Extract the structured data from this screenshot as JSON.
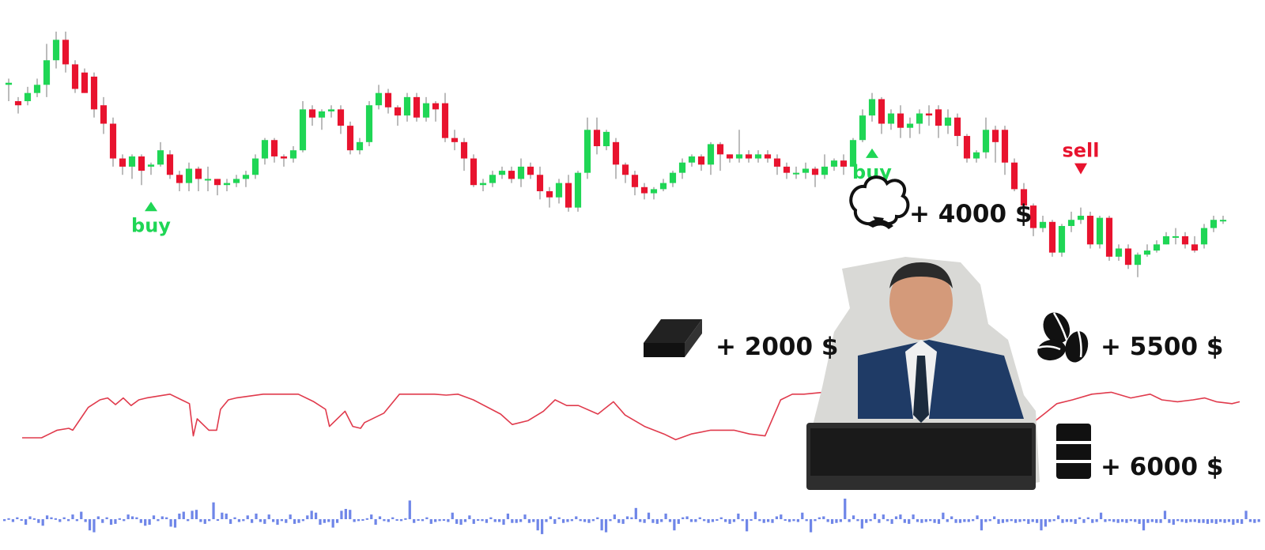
{
  "chart_data": {
    "type": "candlestick",
    "colors": {
      "up": "#1fd655",
      "down": "#e8132e",
      "line": "#e03a4c",
      "volume": "#6f86e8",
      "buy": "#1fd655",
      "sell": "#e8132e",
      "text": "#111111"
    },
    "grid": false,
    "legend": "none",
    "price_range": [
      0,
      100
    ],
    "oscillator_range": [
      0,
      100
    ],
    "volume_range": [
      -30,
      30
    ],
    "candles": [
      [
        74,
        75,
        66,
        77
      ],
      [
        66,
        64,
        60,
        68
      ],
      [
        66,
        70,
        64,
        73
      ],
      [
        70,
        74,
        68,
        77
      ],
      [
        74,
        86,
        68,
        94
      ],
      [
        86,
        96,
        82,
        100
      ],
      [
        96,
        84,
        80,
        100
      ],
      [
        84,
        72,
        70,
        86
      ],
      [
        80,
        70,
        70,
        82
      ],
      [
        78,
        62,
        58,
        80
      ],
      [
        64,
        55,
        50,
        68
      ],
      [
        55,
        38,
        34,
        58
      ],
      [
        38,
        34,
        30,
        40
      ],
      [
        34,
        39,
        28,
        40
      ],
      [
        39,
        32,
        25,
        40
      ],
      [
        34,
        35,
        30,
        36
      ],
      [
        35,
        42,
        34,
        46
      ],
      [
        40,
        30,
        28,
        42
      ],
      [
        30,
        26,
        22,
        32
      ],
      [
        26,
        33,
        22,
        36
      ],
      [
        33,
        28,
        22,
        34
      ],
      [
        28,
        28,
        22,
        34
      ],
      [
        28,
        25,
        20,
        28
      ],
      [
        25,
        26,
        22,
        28
      ],
      [
        26,
        28,
        24,
        30
      ],
      [
        28,
        30,
        24,
        32
      ],
      [
        30,
        38,
        28,
        40
      ],
      [
        38,
        47,
        35,
        48
      ],
      [
        47,
        39,
        36,
        48
      ],
      [
        39,
        38,
        34,
        40
      ],
      [
        38,
        42,
        36,
        44
      ],
      [
        42,
        62,
        41,
        66
      ],
      [
        62,
        58,
        54,
        64
      ],
      [
        58,
        61,
        52,
        62
      ],
      [
        61,
        62,
        58,
        64
      ],
      [
        62,
        54,
        50,
        64
      ],
      [
        54,
        42,
        40,
        56
      ],
      [
        42,
        46,
        40,
        48
      ],
      [
        46,
        64,
        44,
        66
      ],
      [
        64,
        70,
        62,
        74
      ],
      [
        70,
        63,
        60,
        72
      ],
      [
        63,
        59,
        54,
        64
      ],
      [
        59,
        68,
        56,
        70
      ],
      [
        68,
        58,
        56,
        70
      ],
      [
        58,
        65,
        56,
        68
      ],
      [
        65,
        62,
        56,
        66
      ],
      [
        65,
        48,
        46,
        70
      ],
      [
        48,
        46,
        42,
        52
      ],
      [
        46,
        38,
        32,
        48
      ],
      [
        38,
        25,
        24,
        40
      ],
      [
        25,
        26,
        22,
        28
      ],
      [
        26,
        30,
        24,
        32
      ],
      [
        30,
        32,
        28,
        34
      ],
      [
        32,
        28,
        26,
        34
      ],
      [
        28,
        34,
        24,
        38
      ],
      [
        34,
        30,
        28,
        36
      ],
      [
        30,
        22,
        18,
        34
      ],
      [
        22,
        19,
        14,
        24
      ],
      [
        19,
        26,
        16,
        28
      ],
      [
        26,
        14,
        12,
        30
      ],
      [
        14,
        31,
        12,
        32
      ],
      [
        31,
        52,
        28,
        58
      ],
      [
        52,
        44,
        40,
        58
      ],
      [
        44,
        51,
        42,
        52
      ],
      [
        46,
        35,
        28,
        48
      ],
      [
        35,
        30,
        26,
        36
      ],
      [
        30,
        24,
        20,
        32
      ],
      [
        24,
        21,
        18,
        26
      ],
      [
        21,
        23,
        18,
        24
      ],
      [
        23,
        26,
        22,
        28
      ],
      [
        26,
        31,
        24,
        32
      ],
      [
        31,
        36,
        28,
        38
      ],
      [
        36,
        39,
        34,
        40
      ],
      [
        39,
        35,
        32,
        40
      ],
      [
        35,
        45,
        30,
        46
      ],
      [
        45,
        40,
        32,
        46
      ],
      [
        40,
        38,
        36,
        40
      ],
      [
        38,
        40,
        36,
        52
      ],
      [
        40,
        38,
        36,
        42
      ],
      [
        38,
        40,
        36,
        42
      ],
      [
        40,
        38,
        36,
        42
      ],
      [
        38,
        34,
        30,
        40
      ],
      [
        34,
        31,
        28,
        36
      ],
      [
        31,
        31,
        28,
        34
      ],
      [
        31,
        33,
        28,
        36
      ],
      [
        33,
        30,
        24,
        34
      ],
      [
        30,
        34,
        28,
        40
      ],
      [
        34,
        37,
        32,
        38
      ],
      [
        37,
        34,
        30,
        40
      ],
      [
        34,
        47,
        34,
        48
      ],
      [
        47,
        59,
        46,
        62
      ],
      [
        59,
        67,
        56,
        70
      ],
      [
        67,
        55,
        50,
        68
      ],
      [
        55,
        60,
        52,
        62
      ],
      [
        60,
        53,
        48,
        64
      ],
      [
        53,
        55,
        48,
        58
      ],
      [
        55,
        60,
        50,
        62
      ],
      [
        60,
        59,
        54,
        64
      ],
      [
        62,
        54,
        48,
        64
      ],
      [
        54,
        58,
        50,
        62
      ],
      [
        58,
        49,
        44,
        60
      ],
      [
        49,
        38,
        36,
        50
      ],
      [
        38,
        41,
        36,
        42
      ],
      [
        41,
        52,
        38,
        58
      ],
      [
        52,
        46,
        36,
        54
      ],
      [
        52,
        36,
        30,
        54
      ],
      [
        36,
        23,
        22,
        38
      ],
      [
        23,
        15,
        10,
        26
      ],
      [
        15,
        4,
        0,
        16
      ],
      [
        4,
        7,
        2,
        10
      ],
      [
        7,
        -8,
        -10,
        8
      ],
      [
        -8,
        5,
        -10,
        6
      ],
      [
        5,
        8,
        2,
        12
      ],
      [
        8,
        10,
        6,
        14
      ],
      [
        10,
        -4,
        -6,
        12
      ],
      [
        -4,
        9,
        -6,
        10
      ],
      [
        9,
        -10,
        -12,
        10
      ],
      [
        -10,
        -6,
        -12,
        -4
      ],
      [
        -6,
        -14,
        -16,
        -4
      ],
      [
        -14,
        -9,
        -20,
        -8
      ],
      [
        -9,
        -7,
        -10,
        -4
      ],
      [
        -7,
        -4,
        -8,
        -2
      ],
      [
        -4,
        0,
        -4,
        2
      ],
      [
        0,
        0,
        -4,
        4
      ],
      [
        0,
        -4,
        -6,
        2
      ],
      [
        -4,
        -7,
        -8,
        0
      ],
      [
        -4,
        4,
        -6,
        6
      ],
      [
        4,
        8,
        2,
        10
      ],
      [
        8,
        8,
        6,
        10
      ]
    ],
    "signals": [
      {
        "label": "buy",
        "type": "buy"
      },
      {
        "label": "buy",
        "type": "buy"
      },
      {
        "label": "sell",
        "type": "sell"
      }
    ],
    "oscillator": [
      [
        0,
        20
      ],
      [
        5,
        20
      ],
      [
        7,
        24
      ],
      [
        9,
        28
      ],
      [
        12,
        30
      ],
      [
        13,
        28
      ],
      [
        15,
        40
      ],
      [
        17,
        52
      ],
      [
        20,
        60
      ],
      [
        22,
        62
      ],
      [
        24,
        55
      ],
      [
        26,
        62
      ],
      [
        28,
        54
      ],
      [
        30,
        60
      ],
      [
        32,
        62
      ],
      [
        35,
        64
      ],
      [
        38,
        66
      ],
      [
        41,
        60
      ],
      [
        43,
        56
      ],
      [
        44,
        22
      ],
      [
        45,
        40
      ],
      [
        48,
        28
      ],
      [
        50,
        28
      ],
      [
        51,
        50
      ],
      [
        53,
        60
      ],
      [
        55,
        62
      ],
      [
        62,
        66
      ],
      [
        65,
        66
      ],
      [
        71,
        66
      ],
      [
        75,
        58
      ],
      [
        78,
        50
      ],
      [
        79,
        32
      ],
      [
        80,
        36
      ],
      [
        83,
        48
      ],
      [
        85,
        32
      ],
      [
        87,
        30
      ],
      [
        88,
        36
      ],
      [
        93,
        46
      ],
      [
        97,
        66
      ],
      [
        106,
        66
      ],
      [
        109,
        65
      ],
      [
        112,
        66
      ],
      [
        116,
        60
      ],
      [
        123,
        45
      ],
      [
        126,
        34
      ],
      [
        130,
        38
      ],
      [
        134,
        48
      ],
      [
        137,
        60
      ],
      [
        140,
        54
      ],
      [
        143,
        54
      ],
      [
        148,
        45
      ],
      [
        152,
        58
      ],
      [
        155,
        44
      ],
      [
        160,
        32
      ],
      [
        165,
        24
      ],
      [
        168,
        18
      ],
      [
        172,
        24
      ],
      [
        177,
        28
      ],
      [
        183,
        28
      ],
      [
        187,
        24
      ],
      [
        191,
        22
      ],
      [
        195,
        60
      ],
      [
        198,
        66
      ],
      [
        201,
        66
      ],
      [
        206,
        68
      ],
      [
        211,
        64
      ],
      [
        213,
        36
      ],
      [
        216,
        34
      ],
      [
        219,
        18
      ],
      [
        222,
        14
      ],
      [
        231,
        14
      ],
      [
        236,
        16
      ],
      [
        240,
        20
      ],
      [
        245,
        18
      ],
      [
        250,
        14
      ],
      [
        258,
        30
      ],
      [
        263,
        46
      ],
      [
        266,
        56
      ],
      [
        270,
        60
      ],
      [
        275,
        66
      ],
      [
        280,
        68
      ],
      [
        285,
        62
      ],
      [
        290,
        66
      ],
      [
        293,
        60
      ],
      [
        297,
        58
      ],
      [
        301,
        60
      ],
      [
        304,
        62
      ],
      [
        307,
        58
      ],
      [
        311,
        56
      ],
      [
        313,
        58
      ]
    ],
    "volume": [
      -2,
      1,
      -3,
      2,
      -1,
      -6,
      3,
      1,
      -4,
      -7,
      4,
      2,
      1,
      -3,
      2,
      -2,
      5,
      -2,
      8,
      -3,
      -12,
      -14,
      3,
      -4,
      2,
      -6,
      -5,
      1,
      -2,
      5,
      3,
      2,
      -4,
      -7,
      -6,
      4,
      -2,
      3,
      2,
      -8,
      -9,
      6,
      8,
      -2,
      9,
      10,
      -3,
      -5,
      -2,
      18,
      -1,
      7,
      6,
      -5,
      2,
      -3,
      -2,
      4,
      -4,
      6,
      -3,
      -5,
      5,
      -3,
      -6,
      -2,
      -4,
      5,
      -5,
      -4,
      -2,
      4,
      9,
      7,
      -6,
      -4,
      -3,
      -9,
      -4,
      9,
      11,
      10,
      -3,
      -2,
      -1,
      1,
      5,
      -6,
      3,
      -2,
      -3,
      2,
      -1,
      -2,
      1,
      20,
      -4,
      -1,
      -2,
      2,
      -5,
      -3,
      -2,
      -1,
      -3,
      7,
      -5,
      -6,
      -3,
      4,
      -5,
      -1,
      -2,
      -4,
      2,
      -3,
      -3,
      -6,
      6,
      -4,
      -4,
      -3,
      5,
      -4,
      -3,
      -12,
      -16,
      -3,
      3,
      -5,
      2,
      -4,
      -3,
      -2,
      3,
      -2,
      -3,
      -4,
      -2,
      2,
      -12,
      -14,
      -2,
      5,
      -4,
      -5,
      3,
      2,
      12,
      -3,
      -4,
      7,
      -4,
      -5,
      -3,
      6,
      -3,
      -12,
      -5,
      2,
      3,
      -3,
      -3,
      2,
      -2,
      -4,
      -3,
      -1,
      2,
      -3,
      -5,
      -3,
      6,
      -2,
      -13,
      -1,
      8,
      -2,
      -4,
      -3,
      -4,
      3,
      5,
      -1,
      -3,
      -2,
      -3,
      7,
      -2,
      -14,
      -2,
      2,
      3,
      -3,
      -5,
      -4,
      -3,
      22,
      -3,
      4,
      -2,
      -10,
      -4,
      -2,
      6,
      -4,
      5,
      -2,
      -5,
      3,
      5,
      -4,
      -5,
      5,
      -3,
      -4,
      -3,
      -2,
      -4,
      -5,
      7,
      -3,
      3,
      -4,
      -4,
      -3,
      -3,
      -2,
      4,
      -12,
      -3,
      -2,
      3,
      -5,
      -4,
      -3,
      -2,
      -4,
      -3,
      -2,
      -5,
      -3,
      -4,
      -12,
      -8,
      -3,
      -2,
      4,
      -4,
      -3,
      -3,
      -5,
      2,
      -4,
      2,
      -4,
      -3,
      7,
      -3,
      -2,
      -3,
      -4,
      -3,
      -4,
      -2,
      -3,
      -5,
      -12,
      -4,
      -3,
      -4,
      -4,
      9,
      -4,
      -6,
      -2,
      -3,
      -4,
      -3,
      -3,
      -4,
      -4,
      -5,
      -4,
      -5,
      -3,
      -4,
      -3,
      -6,
      -4,
      -5,
      9,
      -3,
      -4,
      -3
    ],
    "annotations": [
      {
        "text": "+ 4000 $",
        "icon": "cotton-icon"
      },
      {
        "text": "+ 2000 $",
        "icon": "gold-bar-icon"
      },
      {
        "text": "+ 5500 $",
        "icon": "coffee-beans-icon"
      },
      {
        "text": "+ 6000 $",
        "icon": "oil-barrel-icon"
      }
    ],
    "photo_icon": "trader-at-computer-photo"
  }
}
